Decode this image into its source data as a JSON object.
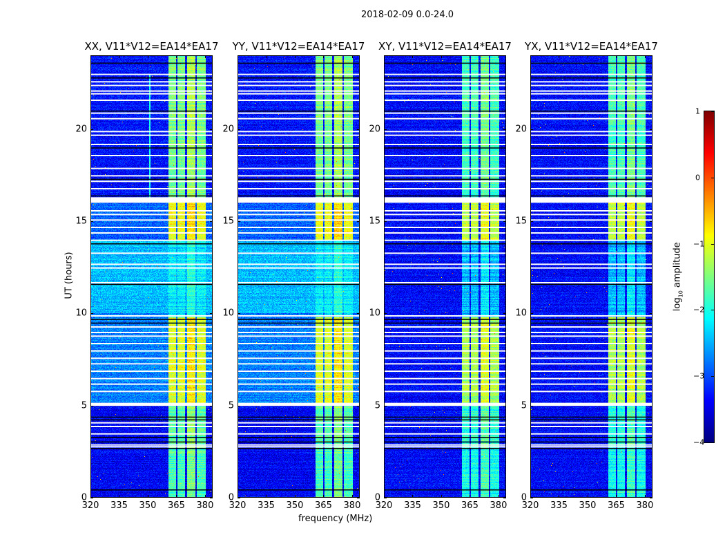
{
  "chart_data": {
    "type": "heatmap",
    "title": "2018-02-09 0.0-24.0",
    "xlabel": "frequency (MHz)",
    "ylabel": "UT (hours)",
    "xlim": [
      320,
      384
    ],
    "ylim": [
      0,
      24
    ],
    "xticks": [
      "320",
      "335",
      "350",
      "365",
      "380"
    ],
    "yticks": [
      "0",
      "5",
      "10",
      "15",
      "20"
    ],
    "panels": [
      {
        "title": "XX, V11*V12=EA14*EA17",
        "pol": "XX"
      },
      {
        "title": "YY, V11*V12=EA14*EA17",
        "pol": "YY"
      },
      {
        "title": "XY, V11*V12=EA14*EA17",
        "pol": "XY"
      },
      {
        "title": "YX, V11*V12=EA14*EA17",
        "pol": "YX"
      }
    ],
    "colorbar": {
      "label": "log10 amplitude",
      "label_main": "log",
      "label_sub": "10",
      "label_rest": " amplitude",
      "colormap": "jet",
      "range": [
        -4,
        1
      ],
      "ticks": [
        "1",
        "0",
        "−1",
        "−2",
        "−3",
        "−4"
      ]
    },
    "signal_subbands_mhz": [
      [
        360.7,
        364.9
      ],
      [
        365.5,
        369.5
      ],
      [
        370.5,
        375.0
      ],
      [
        375.8,
        380.5
      ]
    ],
    "flagged_blocks_hours": [
      [
        4.98,
        5.15
      ],
      [
        16.0,
        16.3
      ]
    ],
    "flagged_lines_hours": [
      23.0,
      22.6,
      22.4,
      22.1,
      21.95,
      21.6,
      20.9,
      20.6,
      19.9,
      19.7,
      19.2,
      18.6,
      17.9,
      17.5,
      17.2,
      16.8,
      15.6,
      15.4,
      15.1,
      14.7,
      14.4,
      14.0,
      13.3,
      12.7,
      12.5,
      11.7,
      9.9,
      9.3,
      9.0,
      8.8,
      8.4,
      8.0,
      7.6,
      7.3,
      6.9,
      6.5,
      6.2,
      5.8,
      4.1,
      3.9,
      3.5,
      2.9,
      2.8
    ],
    "zero_lines_hours": [
      23.6,
      22.8,
      21.0,
      19.0,
      17.3,
      16.4,
      13.8,
      11.6,
      9.7,
      9.5,
      4.4,
      4.25,
      3.3,
      3.05,
      2.7,
      0.45
    ]
  }
}
